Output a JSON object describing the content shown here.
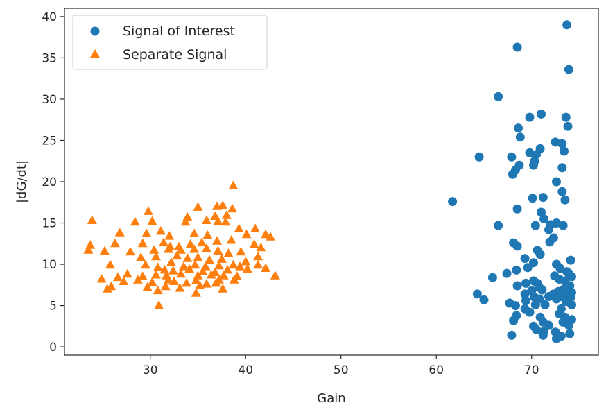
{
  "chart_data": {
    "type": "scatter",
    "xlabel": "Gain",
    "ylabel": "|dG/dt|",
    "xlim": [
      21,
      77
    ],
    "ylim": [
      -1,
      41
    ],
    "xticks": [
      30,
      40,
      50,
      60,
      70
    ],
    "yticks": [
      0,
      5,
      10,
      15,
      20,
      25,
      30,
      35,
      40
    ],
    "grid": false,
    "legend": "top-left",
    "series": [
      {
        "name": "Signal of Interest",
        "marker": "circle",
        "color": "#1f77b4",
        "points": [
          [
            73.7,
            39.0
          ],
          [
            68.5,
            36.3
          ],
          [
            73.9,
            33.6
          ],
          [
            66.5,
            30.3
          ],
          [
            71.0,
            28.2
          ],
          [
            69.8,
            27.8
          ],
          [
            73.6,
            27.8
          ],
          [
            73.8,
            26.7
          ],
          [
            68.6,
            26.5
          ],
          [
            68.8,
            25.4
          ],
          [
            72.5,
            24.8
          ],
          [
            73.2,
            24.6
          ],
          [
            70.9,
            24.0
          ],
          [
            73.4,
            23.7
          ],
          [
            69.8,
            23.5
          ],
          [
            70.5,
            23.3
          ],
          [
            64.5,
            23.0
          ],
          [
            67.9,
            23.0
          ],
          [
            70.3,
            22.5
          ],
          [
            68.7,
            22.0
          ],
          [
            70.2,
            22.0
          ],
          [
            68.3,
            21.4
          ],
          [
            73.2,
            21.7
          ],
          [
            68.0,
            20.9
          ],
          [
            72.6,
            20.0
          ],
          [
            73.2,
            18.8
          ],
          [
            61.7,
            17.6
          ],
          [
            70.1,
            18.0
          ],
          [
            71.2,
            18.1
          ],
          [
            73.5,
            17.8
          ],
          [
            68.5,
            16.7
          ],
          [
            71.0,
            16.3
          ],
          [
            71.3,
            15.5
          ],
          [
            66.5,
            14.7
          ],
          [
            70.4,
            14.7
          ],
          [
            72.0,
            14.8
          ],
          [
            72.6,
            15.0
          ],
          [
            73.3,
            14.7
          ],
          [
            71.8,
            14.2
          ],
          [
            72.3,
            13.2
          ],
          [
            71.9,
            12.7
          ],
          [
            68.1,
            12.6
          ],
          [
            68.5,
            12.2
          ],
          [
            70.6,
            11.7
          ],
          [
            70.9,
            11.2
          ],
          [
            69.3,
            10.7
          ],
          [
            70.2,
            10.2
          ],
          [
            72.6,
            10.0
          ],
          [
            74.1,
            10.5
          ],
          [
            69.6,
            9.6
          ],
          [
            73.0,
            9.5
          ],
          [
            73.7,
            9.1
          ],
          [
            68.4,
            9.3
          ],
          [
            67.4,
            8.9
          ],
          [
            73.9,
            8.9
          ],
          [
            65.9,
            8.4
          ],
          [
            72.4,
            8.6
          ],
          [
            74.2,
            8.5
          ],
          [
            70.2,
            8.0
          ],
          [
            72.9,
            8.2
          ],
          [
            73.5,
            8.0
          ],
          [
            69.4,
            7.7
          ],
          [
            70.6,
            7.7
          ],
          [
            68.5,
            7.4
          ],
          [
            74.0,
            7.4
          ],
          [
            70.8,
            7.2
          ],
          [
            73.4,
            7.0
          ],
          [
            70.0,
            6.8
          ],
          [
            71.1,
            6.9
          ],
          [
            72.8,
            6.7
          ],
          [
            74.2,
            6.6
          ],
          [
            64.3,
            6.4
          ],
          [
            69.3,
            6.4
          ],
          [
            72.3,
            6.4
          ],
          [
            73.7,
            6.5
          ],
          [
            71.8,
            6.1
          ],
          [
            70.3,
            6.0
          ],
          [
            73.1,
            6.1
          ],
          [
            74.1,
            6.0
          ],
          [
            65.0,
            5.7
          ],
          [
            69.4,
            5.6
          ],
          [
            70.8,
            5.8
          ],
          [
            72.6,
            5.8
          ],
          [
            73.6,
            5.5
          ],
          [
            67.7,
            5.3
          ],
          [
            68.3,
            5.0
          ],
          [
            70.4,
            5.1
          ],
          [
            71.4,
            5.1
          ],
          [
            74.2,
            5.1
          ],
          [
            69.3,
            4.6
          ],
          [
            73.1,
            4.6
          ],
          [
            69.8,
            4.2
          ],
          [
            72.9,
            4.0
          ],
          [
            68.4,
            3.8
          ],
          [
            70.9,
            3.6
          ],
          [
            73.5,
            3.6
          ],
          [
            74.2,
            3.3
          ],
          [
            68.1,
            3.2
          ],
          [
            71.2,
            3.0
          ],
          [
            73.3,
            3.0
          ],
          [
            70.2,
            2.5
          ],
          [
            71.8,
            2.6
          ],
          [
            73.9,
            2.6
          ],
          [
            70.5,
            2.1
          ],
          [
            71.3,
            1.9
          ],
          [
            72.5,
            1.8
          ],
          [
            74.0,
            1.6
          ],
          [
            67.9,
            1.4
          ],
          [
            71.2,
            1.4
          ],
          [
            73.1,
            1.3
          ],
          [
            72.6,
            1.0
          ]
        ]
      },
      {
        "name": "Separate Signal",
        "marker": "triangle",
        "color": "#ff7f0e",
        "points": [
          [
            38.7,
            19.5
          ],
          [
            35.0,
            16.9
          ],
          [
            37.0,
            17.0
          ],
          [
            37.6,
            17.1
          ],
          [
            38.6,
            16.7
          ],
          [
            29.8,
            16.4
          ],
          [
            33.9,
            15.7
          ],
          [
            36.8,
            15.8
          ],
          [
            37.9,
            15.1
          ],
          [
            38.0,
            15.9
          ],
          [
            23.9,
            15.3
          ],
          [
            28.4,
            15.1
          ],
          [
            30.2,
            15.2
          ],
          [
            31.1,
            14.0
          ],
          [
            33.7,
            15.1
          ],
          [
            35.9,
            15.3
          ],
          [
            37.1,
            15.2
          ],
          [
            39.3,
            14.3
          ],
          [
            41.0,
            14.3
          ],
          [
            26.8,
            13.8
          ],
          [
            29.6,
            13.7
          ],
          [
            32.0,
            13.4
          ],
          [
            34.6,
            13.7
          ],
          [
            36.0,
            13.5
          ],
          [
            40.1,
            13.6
          ],
          [
            42.1,
            13.6
          ],
          [
            42.6,
            13.3
          ],
          [
            26.3,
            12.5
          ],
          [
            29.2,
            12.5
          ],
          [
            31.4,
            12.6
          ],
          [
            32.1,
            12.1
          ],
          [
            33.0,
            12.1
          ],
          [
            34.2,
            12.4
          ],
          [
            35.4,
            12.6
          ],
          [
            37.0,
            12.8
          ],
          [
            38.5,
            12.9
          ],
          [
            40.9,
            12.4
          ],
          [
            41.6,
            12.0
          ],
          [
            23.7,
            12.3
          ],
          [
            23.5,
            11.7
          ],
          [
            25.2,
            11.6
          ],
          [
            27.9,
            11.5
          ],
          [
            30.4,
            11.7
          ],
          [
            31.9,
            11.8
          ],
          [
            33.2,
            11.7
          ],
          [
            34.6,
            11.8
          ],
          [
            35.9,
            11.9
          ],
          [
            37.1,
            11.6
          ],
          [
            38.2,
            11.3
          ],
          [
            39.5,
            11.5
          ],
          [
            29.0,
            10.8
          ],
          [
            30.6,
            10.9
          ],
          [
            32.8,
            11.0
          ],
          [
            33.9,
            10.7
          ],
          [
            35.0,
            10.8
          ],
          [
            36.2,
            10.5
          ],
          [
            37.5,
            10.6
          ],
          [
            40.0,
            10.3
          ],
          [
            41.3,
            10.9
          ],
          [
            25.8,
            9.9
          ],
          [
            29.5,
            9.9
          ],
          [
            30.8,
            9.6
          ],
          [
            32.2,
            10.2
          ],
          [
            33.5,
            9.7
          ],
          [
            34.7,
            9.9
          ],
          [
            35.8,
            9.7
          ],
          [
            37.2,
            9.8
          ],
          [
            38.7,
            9.9
          ],
          [
            39.4,
            9.7
          ],
          [
            41.3,
            9.9
          ],
          [
            31.5,
            9.3
          ],
          [
            32.4,
            9.2
          ],
          [
            34.1,
            9.4
          ],
          [
            35.5,
            9.1
          ],
          [
            36.8,
            9.0
          ],
          [
            38.1,
            9.3
          ],
          [
            40.2,
            9.4
          ],
          [
            42.1,
            9.5
          ],
          [
            27.6,
            8.8
          ],
          [
            29.2,
            8.5
          ],
          [
            30.6,
            8.7
          ],
          [
            31.7,
            8.6
          ],
          [
            33.2,
            8.8
          ],
          [
            35.0,
            8.6
          ],
          [
            36.4,
            8.7
          ],
          [
            37.7,
            8.6
          ],
          [
            39.1,
            8.5
          ],
          [
            43.1,
            8.6
          ],
          [
            24.9,
            8.2
          ],
          [
            26.6,
            8.4
          ],
          [
            28.7,
            8.1
          ],
          [
            31.9,
            8.1
          ],
          [
            34.8,
            8.0
          ],
          [
            37.2,
            8.1
          ],
          [
            38.8,
            8.1
          ],
          [
            25.9,
            7.3
          ],
          [
            27.2,
            7.9
          ],
          [
            30.2,
            7.8
          ],
          [
            32.5,
            7.9
          ],
          [
            33.8,
            7.7
          ],
          [
            35.9,
            7.6
          ],
          [
            36.9,
            7.7
          ],
          [
            25.5,
            7.0
          ],
          [
            29.7,
            7.2
          ],
          [
            31.6,
            7.3
          ],
          [
            33.1,
            7.1
          ],
          [
            35.2,
            7.4
          ],
          [
            37.6,
            7.0
          ],
          [
            30.8,
            6.8
          ],
          [
            34.8,
            6.5
          ],
          [
            30.9,
            5.0
          ]
        ]
      }
    ]
  }
}
